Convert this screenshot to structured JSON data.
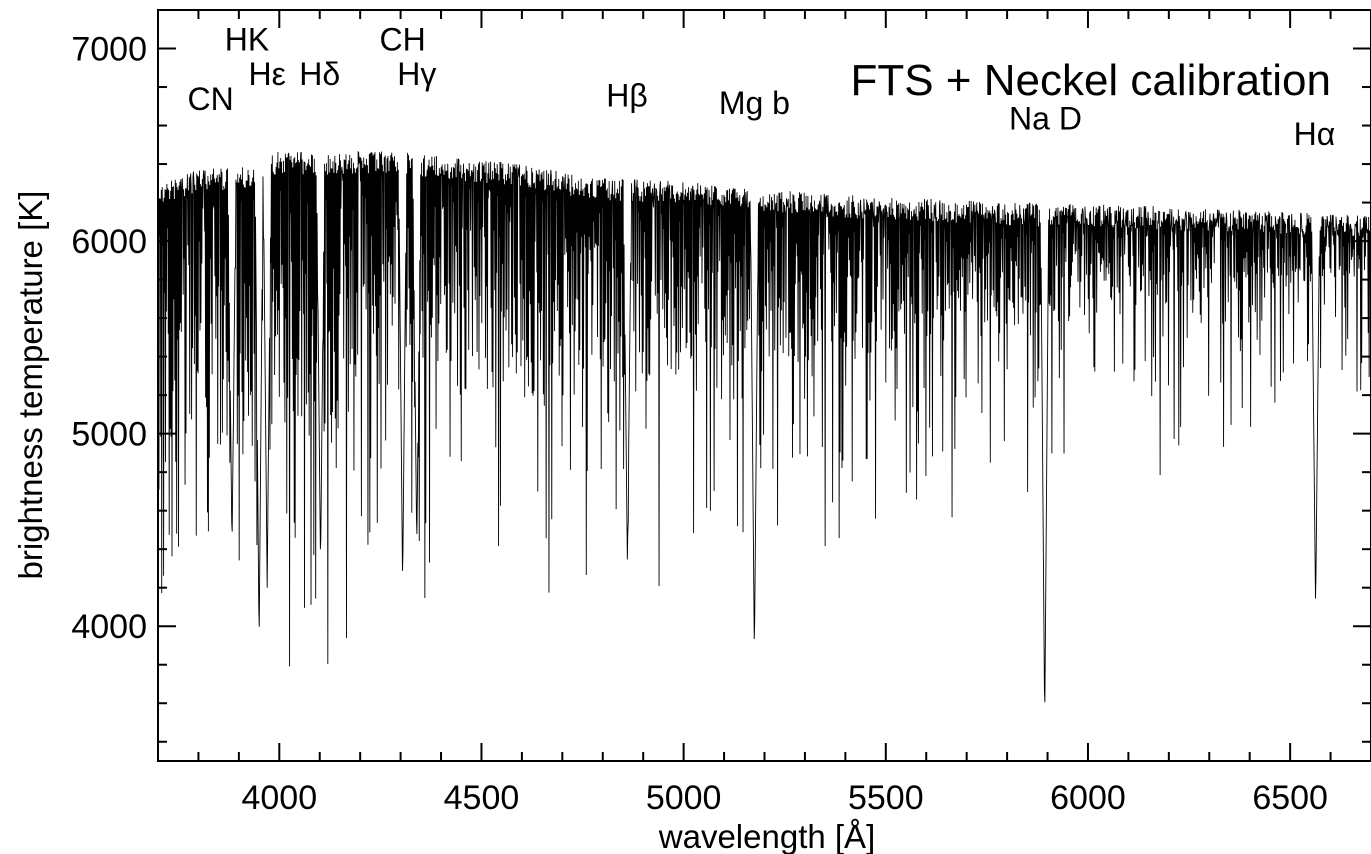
{
  "chart_data": {
    "type": "line",
    "title": "FTS + Neckel calibration",
    "xlabel": "wavelength  [Å]",
    "ylabel": "brightness temperature  [K]",
    "xlim": [
      3700,
      6700
    ],
    "ylim": [
      3300,
      7200
    ],
    "grid": false,
    "line_color": "#000000",
    "x_ticks": [
      4000,
      4500,
      5000,
      5500,
      6000,
      6500
    ],
    "x_tick_labels": [
      "4000",
      "4500",
      "5000",
      "5500",
      "6000",
      "6500"
    ],
    "y_ticks": [
      4000,
      5000,
      6000,
      7000
    ],
    "y_tick_labels": [
      "4000",
      "5000",
      "6000",
      "7000"
    ],
    "continuum": {
      "x": [
        3700,
        3800,
        3900,
        4000,
        4100,
        4200,
        4300,
        4400,
        4500,
        4600,
        4700,
        4800,
        4900,
        5000,
        5200,
        5400,
        5600,
        5800,
        6000,
        6200,
        6400,
        6600,
        6700
      ],
      "y": [
        6300,
        6380,
        6380,
        6470,
        6460,
        6465,
        6465,
        6440,
        6420,
        6400,
        6360,
        6330,
        6320,
        6310,
        6270,
        6240,
        6220,
        6200,
        6190,
        6180,
        6160,
        6140,
        6130
      ]
    },
    "features": [
      {
        "label": "CN",
        "x": 3883,
        "y_min": 4400
      },
      {
        "label": "HK",
        "x": 3950,
        "y_min": 3900
      },
      {
        "label": "Hε",
        "x": 3970,
        "y_min": 4200
      },
      {
        "label": "Hδ",
        "x": 4102,
        "y_min": 4300
      },
      {
        "label": "CH",
        "x": 4305,
        "y_min": 4200
      },
      {
        "label": "Hγ",
        "x": 4340,
        "y_min": 4400
      },
      {
        "label": "Hβ",
        "x": 4861,
        "y_min": 4300
      },
      {
        "label": "Mg b",
        "x": 5175,
        "y_min": 3840
      },
      {
        "label": "Na D",
        "x": 5893,
        "y_min": 3480
      },
      {
        "label": "Hα",
        "x": 6563,
        "y_min": 4080
      }
    ],
    "annotations": [
      {
        "text": "CN",
        "x": 3830,
        "y": 6680
      },
      {
        "text": "HK",
        "x": 3920,
        "y": 6990
      },
      {
        "text": "Hε",
        "x": 3970,
        "y": 6810
      },
      {
        "text": "Hδ",
        "x": 4100,
        "y": 6810
      },
      {
        "text": "CH",
        "x": 4305,
        "y": 6990
      },
      {
        "text": "Hγ",
        "x": 4340,
        "y": 6810
      },
      {
        "text": "Hβ",
        "x": 4860,
        "y": 6700
      },
      {
        "text": "Mg b",
        "x": 5175,
        "y": 6660
      },
      {
        "text": "Na D",
        "x": 5895,
        "y": 6580
      },
      {
        "text": "Hα",
        "x": 6560,
        "y": 6500
      }
    ]
  }
}
